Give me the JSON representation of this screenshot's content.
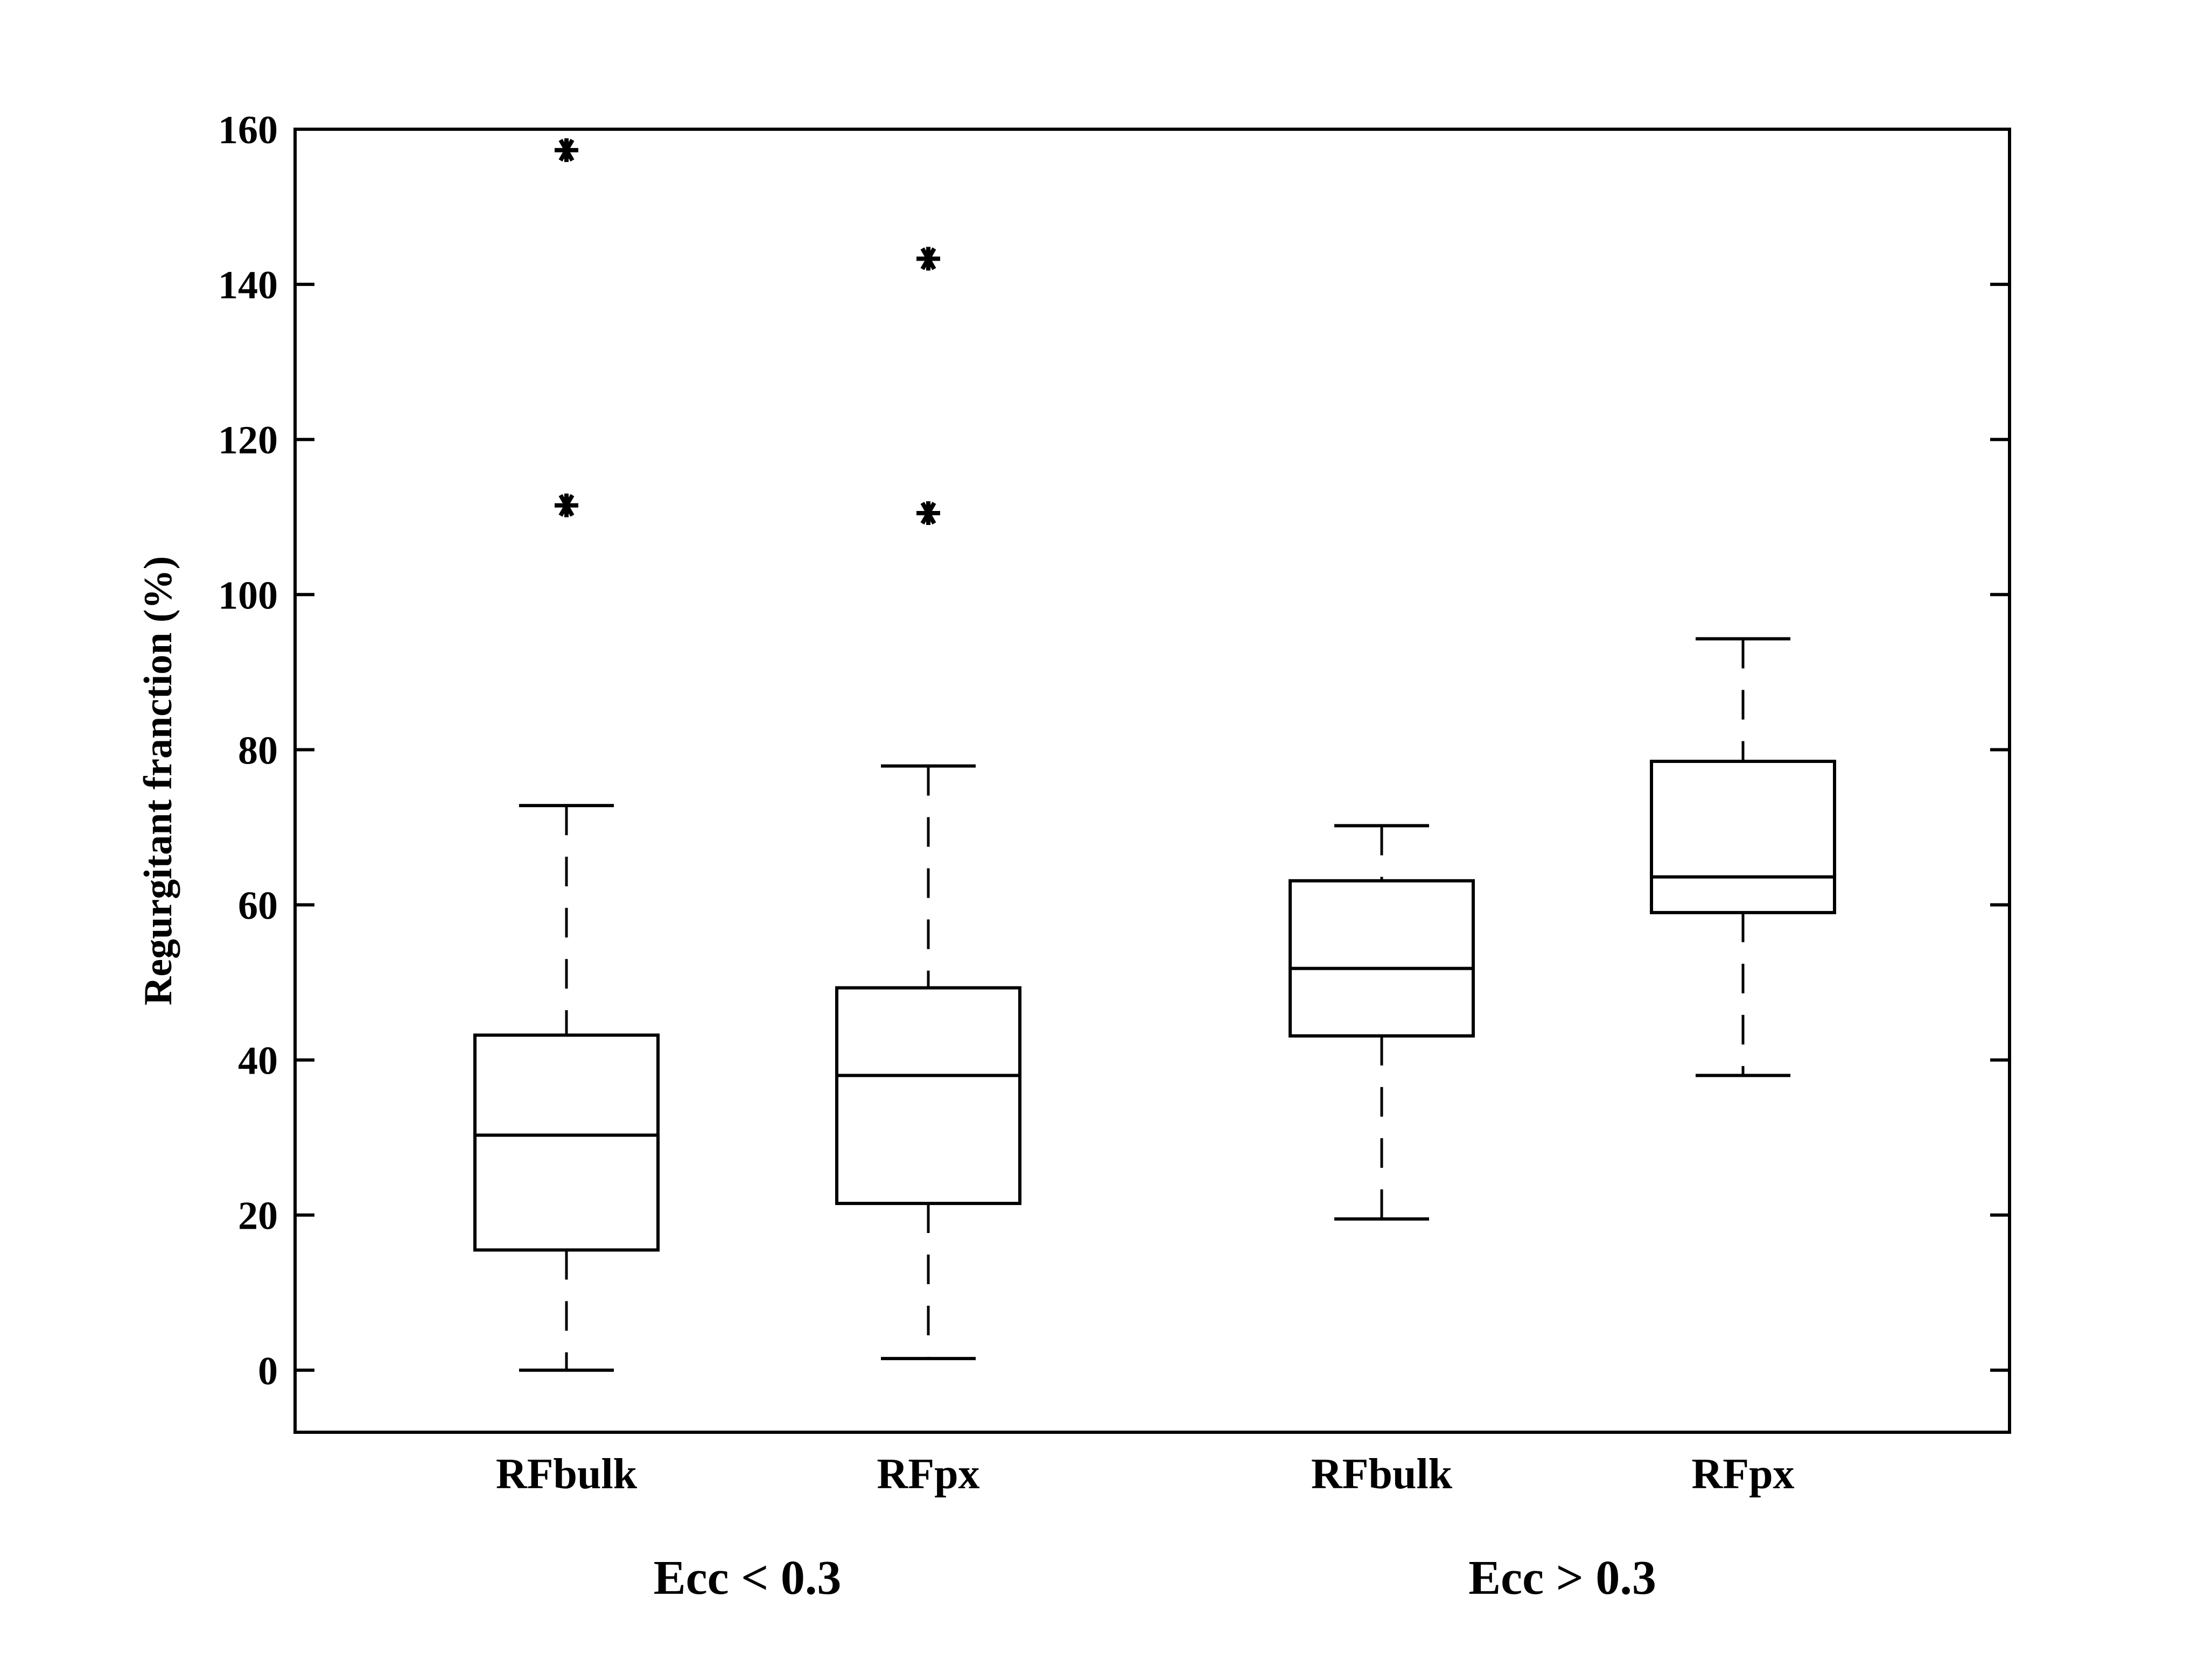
{
  "chart_data": {
    "type": "box",
    "title": "",
    "xlabel": "",
    "ylabel": "Regurgitant franction (%)",
    "ylim": [
      -8,
      160
    ],
    "yticks": [
      0,
      20,
      40,
      60,
      80,
      100,
      120,
      140,
      160
    ],
    "ytick_labels": [
      "0",
      "20",
      "40",
      "60",
      "80",
      "100",
      "120",
      "140",
      "160"
    ],
    "groups": [
      {
        "label": "Ecc < 0.3",
        "boxes": [
          {
            "category": "RFbulk",
            "whisker_low": 0,
            "q1": 15.5,
            "median": 30.3,
            "q3": 43.2,
            "whisker_high": 72.8,
            "outliers": [
              111.5,
              157.3
            ]
          },
          {
            "category": "RFpx",
            "whisker_low": 1.5,
            "q1": 21.5,
            "median": 38.0,
            "q3": 49.3,
            "whisker_high": 77.9,
            "outliers": [
              110.5,
              143.3
            ]
          }
        ]
      },
      {
        "label": "Ecc > 0.3",
        "boxes": [
          {
            "category": "RFbulk",
            "whisker_low": 19.5,
            "q1": 43.1,
            "median": 51.8,
            "q3": 63.1,
            "whisker_high": 70.2,
            "outliers": []
          },
          {
            "category": "RFpx",
            "whisker_low": 38.0,
            "q1": 59.0,
            "median": 63.6,
            "q3": 78.5,
            "whisker_high": 94.3,
            "outliers": []
          }
        ]
      }
    ]
  }
}
